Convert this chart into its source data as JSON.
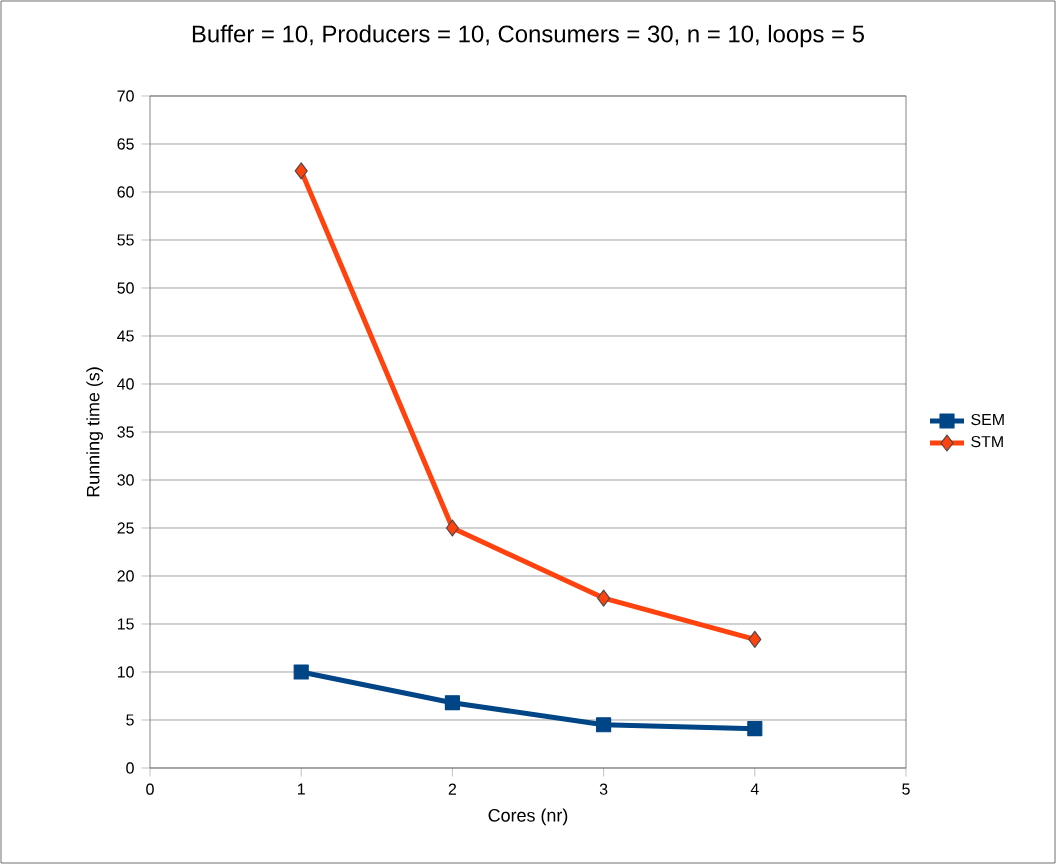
{
  "chart_data": {
    "type": "line",
    "title": "Buffer = 10, Producers = 10, Consumers = 30, n = 10, loops = 5",
    "xlabel": "Cores (nr)",
    "ylabel": "Running time (s)",
    "x": [
      1,
      2,
      3,
      4
    ],
    "series": [
      {
        "name": "SEM",
        "color": "#004586",
        "marker": "square",
        "values": [
          10,
          6.8,
          4.5,
          4.1
        ]
      },
      {
        "name": "STM",
        "color": "#ff420e",
        "marker": "diamond",
        "values": [
          62.2,
          25,
          17.7,
          13.4
        ]
      }
    ],
    "xlim": [
      0,
      5
    ],
    "xticks": [
      0,
      1,
      2,
      3,
      4,
      5
    ],
    "ylim": [
      0,
      70
    ],
    "yticks": [
      0,
      5,
      10,
      15,
      20,
      25,
      30,
      35,
      40,
      45,
      50,
      55,
      60,
      65,
      70
    ],
    "grid": "y",
    "legend": "right",
    "line_style": "solid"
  }
}
